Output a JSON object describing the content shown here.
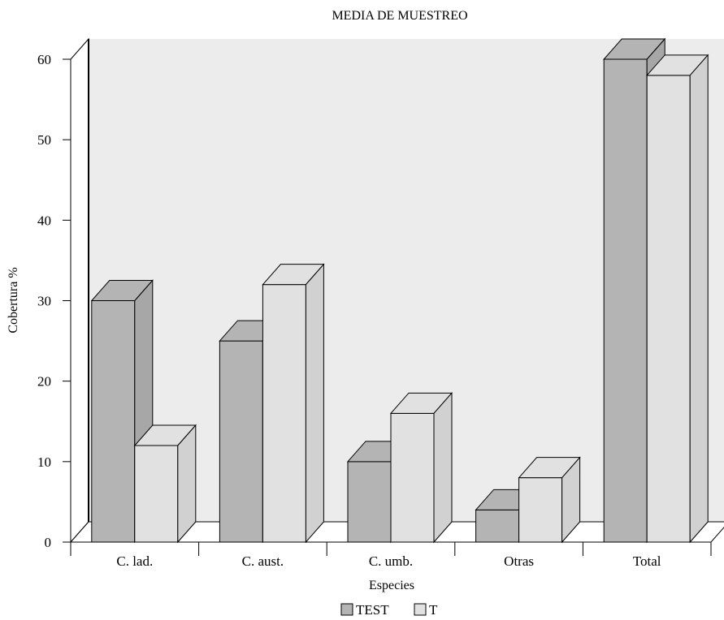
{
  "chart_data": {
    "type": "bar",
    "title": "MEDIA DE MUESTREO",
    "xlabel": "Especies",
    "ylabel": "Cobertura %",
    "categories": [
      "C. lad.",
      "C. aust.",
      "C. umb.",
      "Otras",
      "Total"
    ],
    "series": [
      {
        "name": "TEST",
        "values": [
          30,
          25,
          10,
          4,
          60
        ],
        "color": "#b4b4b4"
      },
      {
        "name": "T",
        "values": [
          12,
          32,
          16,
          8,
          58
        ],
        "color": "#e1e1e1"
      }
    ],
    "ylim": [
      0,
      60
    ],
    "yticks": [
      "0",
      "10",
      "20",
      "30",
      "40",
      "50",
      "60"
    ],
    "grid": false,
    "legend": "bottom",
    "style": "3d"
  }
}
